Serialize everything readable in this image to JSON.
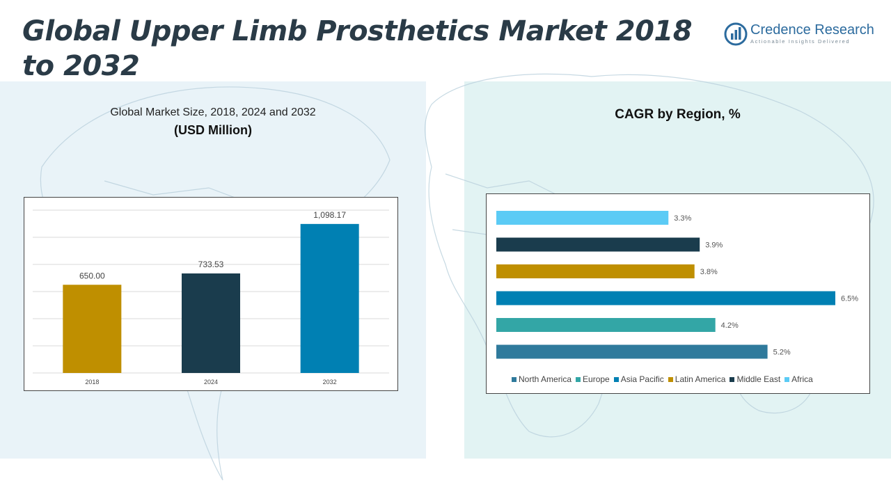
{
  "header": {
    "title": "Global Upper Limb Prosthetics Market 2018 to 2032",
    "logo_name": "Credence Research",
    "logo_tagline": "Actionable Insights Delivered"
  },
  "left_panel": {
    "subtitle": "Global Market Size, 2018, 2024 and 2032",
    "unit_label": "(USD Million)"
  },
  "right_panel": {
    "title": "CAGR by Region, %"
  },
  "colors": {
    "gold": "#bf8f00",
    "navy": "#1a3c4d",
    "blue": "#0080b3",
    "teal": "#33a6a6",
    "steel": "#2f7a9c",
    "sky": "#5bcbf5",
    "title": "#2a3b47"
  },
  "chart_data": [
    {
      "type": "bar",
      "categories": [
        "2018",
        "2024",
        "2032"
      ],
      "values": [
        650.0,
        733.53,
        1098.17
      ],
      "value_labels": [
        "650.00",
        "733.53",
        "1,098.17"
      ],
      "colors": [
        "#bf8f00",
        "#1a3c4d",
        "#0080b3"
      ],
      "title": "Global Market Size, 2018, 2024 and 2032",
      "ylabel": "(USD Million)",
      "ylim": [
        0,
        1200
      ],
      "grid": true
    },
    {
      "type": "bar",
      "orientation": "horizontal",
      "title": "CAGR by Region, %",
      "series": [
        {
          "name": "Africa",
          "value": 3.3,
          "label": "3.3%",
          "color": "#5bcbf5"
        },
        {
          "name": "Middle East",
          "value": 3.9,
          "label": "3.9%",
          "color": "#1a3c4d"
        },
        {
          "name": "Latin America",
          "value": 3.8,
          "label": "3.8%",
          "color": "#bf8f00"
        },
        {
          "name": "Asia Pacific",
          "value": 6.5,
          "label": "6.5%",
          "color": "#0080b3"
        },
        {
          "name": "Europe",
          "value": 4.2,
          "label": "4.2%",
          "color": "#33a6a6"
        },
        {
          "name": "North America",
          "value": 5.2,
          "label": "5.2%",
          "color": "#2f7a9c"
        }
      ],
      "legend": [
        "North America",
        "Europe",
        "Asia Pacific",
        "Latin America",
        "Middle East",
        "Africa"
      ],
      "legend_placement": "bottom",
      "xlim": [
        0,
        6.5
      ]
    }
  ]
}
